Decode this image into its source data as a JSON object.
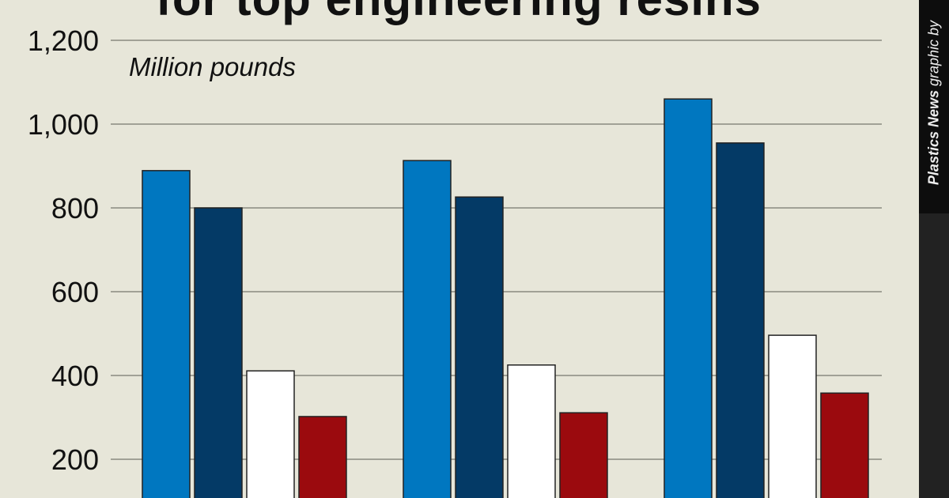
{
  "chart_data": {
    "type": "bar",
    "title": "for top engineering resins",
    "ylabel": "Million pounds",
    "ylim": [
      0,
      1200
    ],
    "yticks": [
      "1,200",
      "1,000",
      "800",
      "600",
      "400",
      "200"
    ],
    "ytick_values": [
      1200,
      1000,
      800,
      600,
      400,
      200
    ],
    "grid": true,
    "categories": [
      "",
      "",
      ""
    ],
    "series": [
      {
        "color": "#0077c0",
        "values": [
          889,
          913,
          1060
        ]
      },
      {
        "color": "#043a66",
        "values": [
          800,
          826,
          955
        ]
      },
      {
        "color": "#ffffff",
        "values": [
          411,
          425,
          496
        ]
      },
      {
        "color": "#9b0a0e",
        "values": [
          302,
          311,
          358
        ]
      }
    ]
  },
  "credit": {
    "publication": "Plastics News",
    "text": " graphic by"
  }
}
